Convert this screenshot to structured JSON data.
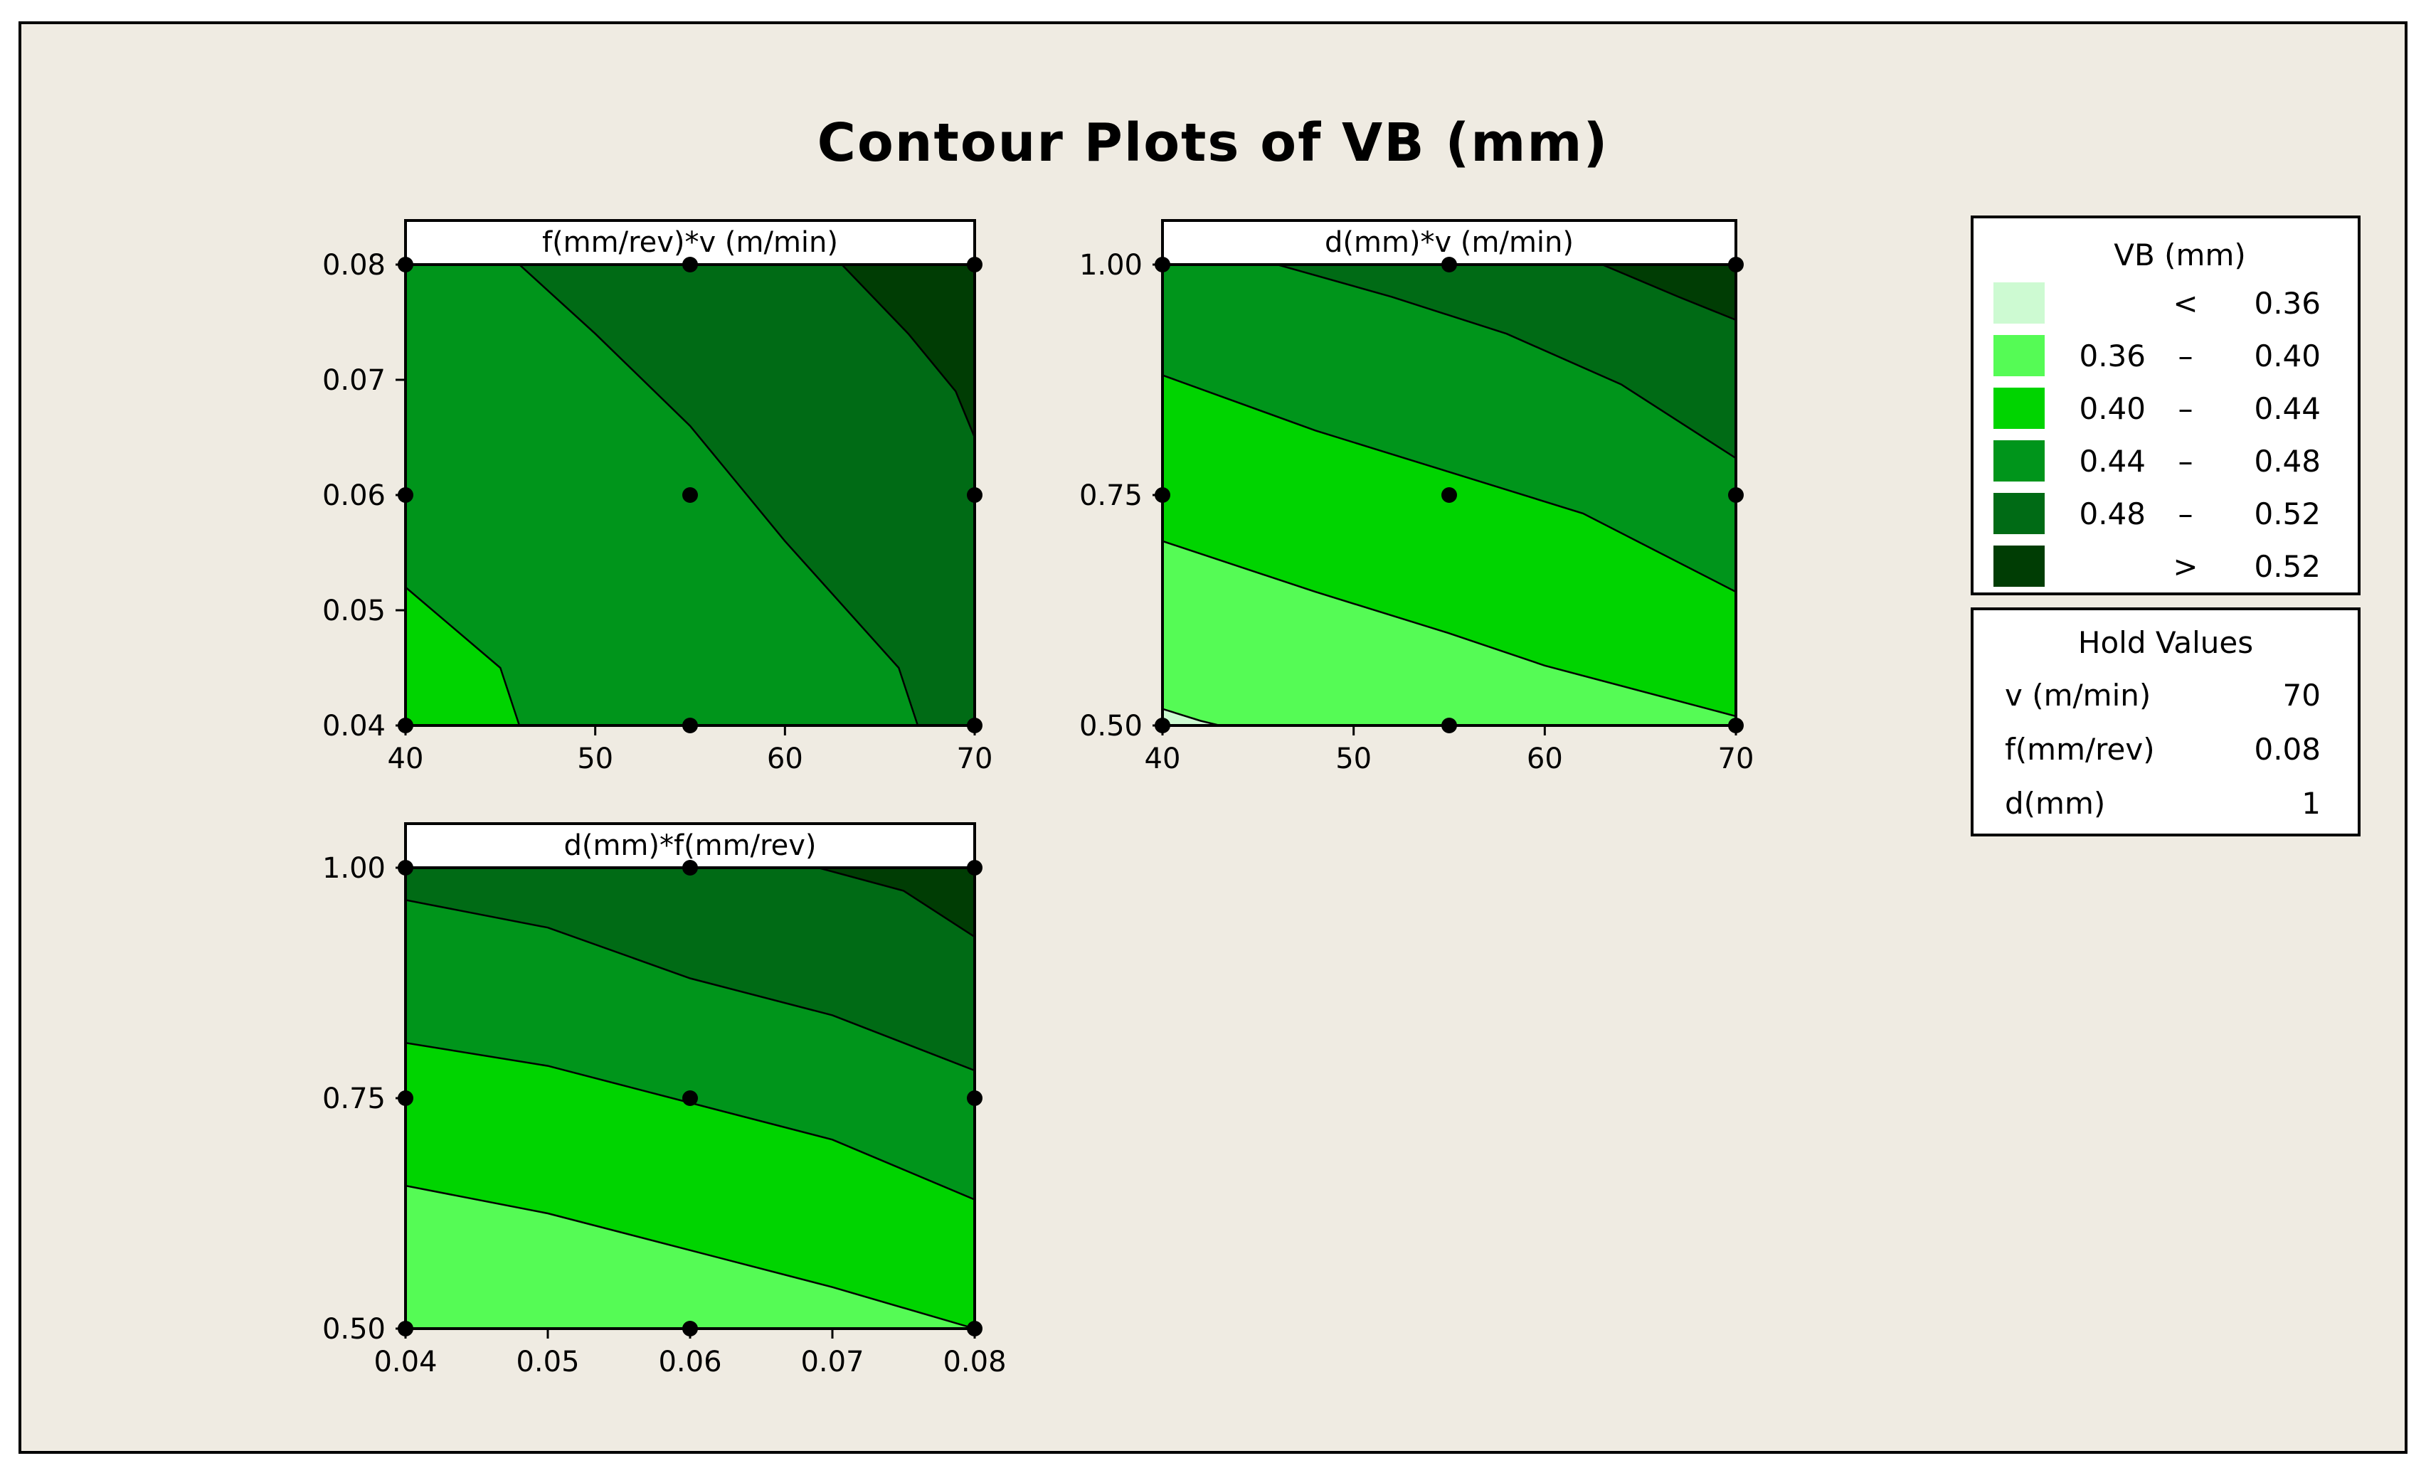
{
  "title": "Contour Plots of VB (mm)",
  "chart_data": {
    "type": "contour",
    "title": "Contour Plots of VB (mm)",
    "response": "VB (mm)",
    "legend": {
      "title": "VB (mm)",
      "placement": "right",
      "levels": [
        {
          "low": "",
          "sym": "<",
          "high": "0.36",
          "color": "#cdfad2"
        },
        {
          "low": "0.36",
          "sym": "–",
          "high": "0.40",
          "color": "#55fb55"
        },
        {
          "low": "0.40",
          "sym": "–",
          "high": "0.44",
          "color": "#00d400"
        },
        {
          "low": "0.44",
          "sym": "–",
          "high": "0.48",
          "color": "#00951b"
        },
        {
          "low": "0.48",
          "sym": "–",
          "high": "0.52",
          "color": "#006b15"
        },
        {
          "low": "",
          "sym": ">",
          "high": "0.52",
          "color": "#003d04"
        }
      ]
    },
    "hold_values": {
      "title": "Hold Values",
      "items": [
        {
          "name": "v (m/min)",
          "value": "70"
        },
        {
          "name": "f(mm/rev)",
          "value": "0.08"
        },
        {
          "name": "d(mm)",
          "value": "1"
        }
      ]
    },
    "panels": [
      {
        "title": "f(mm/rev)*v (m/min)",
        "x_ticks": [
          "40",
          "50",
          "60",
          "70"
        ],
        "y_ticks": [
          "0.04",
          "0.05",
          "0.06",
          "0.07",
          "0.08"
        ],
        "xlim": [
          40,
          70
        ],
        "ylim": [
          0.04,
          0.08
        ],
        "regions": [
          {
            "color": "#00d400",
            "poly": [
              [
                40,
                0.052
              ],
              [
                45,
                0.045
              ],
              [
                46,
                0.04
              ],
              [
                40,
                0.04
              ]
            ]
          },
          {
            "color": "#006b15",
            "poly": [
              [
                46,
                0.08
              ],
              [
                50,
                0.074
              ],
              [
                55,
                0.066
              ],
              [
                60,
                0.056
              ],
              [
                66,
                0.045
              ],
              [
                67,
                0.04
              ],
              [
                70,
                0.04
              ],
              [
                70,
                0.08
              ]
            ]
          },
          {
            "color": "#003d04",
            "poly": [
              [
                63,
                0.08
              ],
              [
                66.5,
                0.074
              ],
              [
                69,
                0.069
              ],
              [
                70,
                0.065
              ],
              [
                70,
                0.08
              ]
            ]
          }
        ],
        "contour_lines": [
          [
            [
              40,
              0.052
            ],
            [
              45,
              0.045
            ],
            [
              46,
              0.04
            ]
          ],
          [
            [
              46,
              0.08
            ],
            [
              50,
              0.074
            ],
            [
              55,
              0.066
            ],
            [
              60,
              0.056
            ],
            [
              66,
              0.045
            ],
            [
              67,
              0.04
            ]
          ],
          [
            [
              63,
              0.08
            ],
            [
              66.5,
              0.074
            ],
            [
              69,
              0.069
            ],
            [
              70,
              0.065
            ]
          ]
        ],
        "design_points": [
          [
            40,
            0.04
          ],
          [
            55,
            0.04
          ],
          [
            70,
            0.04
          ],
          [
            40,
            0.06
          ],
          [
            55,
            0.06
          ],
          [
            70,
            0.06
          ],
          [
            40,
            0.08
          ],
          [
            55,
            0.08
          ],
          [
            70,
            0.08
          ]
        ]
      },
      {
        "title": "d(mm)*v (m/min)",
        "x_ticks": [
          "40",
          "50",
          "60",
          "70"
        ],
        "y_ticks": [
          "0.50",
          "0.75",
          "1.00"
        ],
        "xlim": [
          40,
          70
        ],
        "ylim": [
          0.5,
          1.0
        ],
        "regions": [
          {
            "color": "#55fb55",
            "poly": [
              [
                40,
                0.7
              ],
              [
                48,
                0.645
              ],
              [
                55,
                0.6
              ],
              [
                60,
                0.565
              ],
              [
                70,
                0.51
              ],
              [
                70,
                0.5
              ],
              [
                40,
                0.5
              ]
            ]
          },
          {
            "color": "#00d400",
            "poly": [
              [
                40,
                0.88
              ],
              [
                48,
                0.82
              ],
              [
                55,
                0.775
              ],
              [
                62,
                0.73
              ],
              [
                70,
                0.645
              ],
              [
                70,
                0.51
              ],
              [
                60,
                0.565
              ],
              [
                55,
                0.6
              ],
              [
                48,
                0.645
              ],
              [
                40,
                0.7
              ]
            ]
          },
          {
            "color": "#00951b",
            "poly": [
              [
                46,
                1.0
              ],
              [
                52,
                0.965
              ],
              [
                58,
                0.925
              ],
              [
                64,
                0.87
              ],
              [
                70,
                0.79
              ],
              [
                70,
                0.645
              ],
              [
                62,
                0.73
              ],
              [
                55,
                0.775
              ],
              [
                48,
                0.82
              ],
              [
                40,
                0.88
              ],
              [
                40,
                1.0
              ]
            ]
          },
          {
            "color": "#006b15",
            "poly": [
              [
                63,
                1.0
              ],
              [
                67,
                0.965
              ],
              [
                70,
                0.94
              ],
              [
                70,
                0.79
              ],
              [
                64,
                0.87
              ],
              [
                58,
                0.925
              ],
              [
                52,
                0.965
              ],
              [
                46,
                1.0
              ]
            ]
          },
          {
            "color": "#003d04",
            "poly": [
              [
                63,
                1.0
              ],
              [
                67,
                0.965
              ],
              [
                70,
                0.94
              ],
              [
                70,
                1.0
              ]
            ]
          },
          {
            "color": "#cdfad2",
            "poly": [
              [
                40,
                0.518
              ],
              [
                42,
                0.505
              ],
              [
                43,
                0.5
              ],
              [
                40,
                0.5
              ]
            ]
          }
        ],
        "contour_lines": [
          [
            [
              40,
              0.7
            ],
            [
              48,
              0.645
            ],
            [
              55,
              0.6
            ],
            [
              60,
              0.565
            ],
            [
              70,
              0.51
            ]
          ],
          [
            [
              40,
              0.88
            ],
            [
              48,
              0.82
            ],
            [
              55,
              0.775
            ],
            [
              62,
              0.73
            ],
            [
              70,
              0.645
            ]
          ],
          [
            [
              46,
              1.0
            ],
            [
              52,
              0.965
            ],
            [
              58,
              0.925
            ],
            [
              64,
              0.87
            ],
            [
              70,
              0.79
            ]
          ],
          [
            [
              63,
              1.0
            ],
            [
              67,
              0.965
            ],
            [
              70,
              0.94
            ]
          ],
          [
            [
              40,
              0.518
            ],
            [
              42,
              0.505
            ],
            [
              43,
              0.5
            ]
          ]
        ],
        "design_points": [
          [
            40,
            0.5
          ],
          [
            55,
            0.5
          ],
          [
            70,
            0.5
          ],
          [
            40,
            0.75
          ],
          [
            55,
            0.75
          ],
          [
            70,
            0.75
          ],
          [
            40,
            1.0
          ],
          [
            55,
            1.0
          ],
          [
            70,
            1.0
          ]
        ]
      },
      {
        "title": "d(mm)*f(mm/rev)",
        "x_ticks": [
          "0.04",
          "0.05",
          "0.06",
          "0.07",
          "0.08"
        ],
        "y_ticks": [
          "0.50",
          "0.75",
          "1.00"
        ],
        "xlim": [
          0.04,
          0.08
        ],
        "ylim": [
          0.5,
          1.0
        ],
        "regions": [
          {
            "color": "#55fb55",
            "poly": [
              [
                0.04,
                0.655
              ],
              [
                0.05,
                0.625
              ],
              [
                0.06,
                0.585
              ],
              [
                0.07,
                0.545
              ],
              [
                0.08,
                0.5
              ],
              [
                0.04,
                0.5
              ]
            ]
          },
          {
            "color": "#00d400",
            "poly": [
              [
                0.04,
                0.81
              ],
              [
                0.05,
                0.785
              ],
              [
                0.06,
                0.745
              ],
              [
                0.07,
                0.705
              ],
              [
                0.08,
                0.64
              ],
              [
                0.08,
                0.5
              ],
              [
                0.07,
                0.545
              ],
              [
                0.06,
                0.585
              ],
              [
                0.05,
                0.625
              ],
              [
                0.04,
                0.655
              ]
            ]
          },
          {
            "color": "#00951b",
            "poly": [
              [
                0.04,
                0.965
              ],
              [
                0.05,
                0.935
              ],
              [
                0.06,
                0.88
              ],
              [
                0.07,
                0.84
              ],
              [
                0.08,
                0.78
              ],
              [
                0.08,
                0.64
              ],
              [
                0.07,
                0.705
              ],
              [
                0.06,
                0.745
              ],
              [
                0.05,
                0.785
              ],
              [
                0.04,
                0.81
              ]
            ]
          },
          {
            "color": "#006b15",
            "poly": [
              [
                0.04,
                1.0
              ],
              [
                0.069,
                1.0
              ],
              [
                0.075,
                0.975
              ],
              [
                0.08,
                0.925
              ],
              [
                0.08,
                0.78
              ],
              [
                0.07,
                0.84
              ],
              [
                0.06,
                0.88
              ],
              [
                0.05,
                0.935
              ],
              [
                0.04,
                0.965
              ]
            ]
          },
          {
            "color": "#003d04",
            "poly": [
              [
                0.069,
                1.0
              ],
              [
                0.075,
                0.975
              ],
              [
                0.08,
                0.925
              ],
              [
                0.08,
                1.0
              ]
            ]
          }
        ],
        "contour_lines": [
          [
            [
              0.04,
              0.655
            ],
            [
              0.05,
              0.625
            ],
            [
              0.06,
              0.585
            ],
            [
              0.07,
              0.545
            ],
            [
              0.08,
              0.5
            ]
          ],
          [
            [
              0.04,
              0.81
            ],
            [
              0.05,
              0.785
            ],
            [
              0.06,
              0.745
            ],
            [
              0.07,
              0.705
            ],
            [
              0.08,
              0.64
            ]
          ],
          [
            [
              0.04,
              0.965
            ],
            [
              0.05,
              0.935
            ],
            [
              0.06,
              0.88
            ],
            [
              0.07,
              0.84
            ],
            [
              0.08,
              0.78
            ]
          ],
          [
            [
              0.069,
              1.0
            ],
            [
              0.075,
              0.975
            ],
            [
              0.08,
              0.925
            ]
          ]
        ],
        "design_points": [
          [
            0.04,
            0.5
          ],
          [
            0.06,
            0.5
          ],
          [
            0.08,
            0.5
          ],
          [
            0.04,
            0.75
          ],
          [
            0.06,
            0.75
          ],
          [
            0.08,
            0.75
          ],
          [
            0.04,
            1.0
          ],
          [
            0.06,
            1.0
          ],
          [
            0.08,
            1.0
          ]
        ]
      }
    ]
  }
}
